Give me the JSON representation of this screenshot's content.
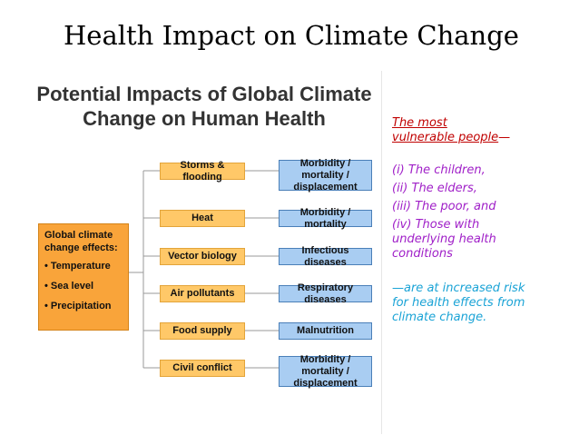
{
  "slide": {
    "title": "Health Impact on Climate Change"
  },
  "diagram": {
    "title_line1": "Potential Impacts of Global Climate",
    "title_line2": "Change on Human Health",
    "effects_box": {
      "heading_line1": "Global climate",
      "heading_line2": "change effects:",
      "items": [
        "• Temperature",
        "• Sea level",
        "• Precipitation"
      ]
    },
    "rows": [
      {
        "cause": "Storms & flooding",
        "impact": "Morbidity / mortality / displacement"
      },
      {
        "cause": "Heat",
        "impact": "Morbidity / mortality"
      },
      {
        "cause": "Vector biology",
        "impact": "Infectious diseases"
      },
      {
        "cause": "Air pollutants",
        "impact": "Respiratory diseases"
      },
      {
        "cause": "Food supply",
        "impact": "Malnutrition"
      },
      {
        "cause": "Civil conflict",
        "impact": "Morbidity / mortality / displacement"
      }
    ],
    "colors": {
      "cause_fill": "#ffc868",
      "effects_fill": "#f9a43a",
      "impact_fill": "#a9cdf2",
      "connector": "#999999"
    }
  },
  "side_text": {
    "heading_line1": "The most",
    "heading_underlined": "vulnerable people",
    "heading_dash": "—",
    "items": [
      "(i) The children,",
      "(ii) The elders,",
      "(iii) The poor, and",
      "(iv) Those with underlying health conditions"
    ],
    "conclusion": "—are at increased risk for health effects from climate change.",
    "colors": {
      "heading": "#c00000",
      "items": "#a020c8",
      "conclusion": "#1aa3d6"
    }
  }
}
